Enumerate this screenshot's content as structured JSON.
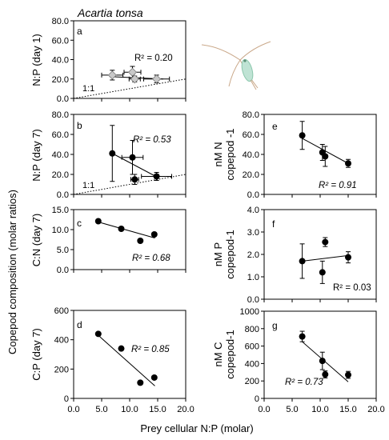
{
  "figure": {
    "title": "Acartia tonsa",
    "shared_ylabel": "Copepod composition (molar ratios)",
    "shared_xlabel": "Prey cellular N:P (molar)",
    "xtick_labels": [
      "0.0",
      "5.0",
      "10.0",
      "15.0",
      "20.0"
    ]
  },
  "chart_data": [
    {
      "id": "a",
      "type": "scatter",
      "panel_label": "a",
      "ylabel": "N:P (day 1)",
      "xlim": [
        0,
        20
      ],
      "ylim": [
        0,
        80
      ],
      "yticks": [
        0,
        20,
        40,
        60,
        80
      ],
      "ytick_labels": [
        "0.0",
        "20.0",
        "40.0",
        "60.0",
        "80.0"
      ],
      "r2": "R² = 0.20",
      "r2_italic": false,
      "one_to_one_label": "1:1",
      "marker": "diamond-gray",
      "points": [
        {
          "x": 6.9,
          "y": 24,
          "xerr": 1.9,
          "yerr": 5
        },
        {
          "x": 10.5,
          "y": 27,
          "xerr": 1.5,
          "yerr": 6
        },
        {
          "x": 10.9,
          "y": 20,
          "xerr": 1.0,
          "yerr": 3
        },
        {
          "x": 14.8,
          "y": 20,
          "xerr": 2.3,
          "yerr": 4
        }
      ],
      "fit": {
        "x": [
          6.4,
          16.0
        ],
        "y": [
          22.5,
          20.0
        ]
      }
    },
    {
      "id": "b",
      "type": "scatter",
      "panel_label": "b",
      "ylabel": "N:P (day 7)",
      "xlim": [
        0,
        20
      ],
      "ylim": [
        0,
        80
      ],
      "yticks": [
        0,
        20,
        40,
        60,
        80
      ],
      "ytick_labels": [
        "0.0",
        "20.0",
        "40.0",
        "60.0",
        "80.0"
      ],
      "r2": "R² = 0.53",
      "r2_italic": true,
      "one_to_one_label": "1:1",
      "marker": "circle",
      "points": [
        {
          "x": 6.9,
          "y": 41,
          "xerr": 0,
          "yerr": 28
        },
        {
          "x": 10.5,
          "y": 37,
          "xerr": 1.9,
          "yerr": 17
        },
        {
          "x": 10.9,
          "y": 15,
          "xerr": 0.7,
          "yerr": 5
        },
        {
          "x": 14.8,
          "y": 18,
          "xerr": 2.7,
          "yerr": 4
        }
      ],
      "fit": {
        "x": [
          6.9,
          15.0
        ],
        "y": [
          41,
          17
        ]
      }
    },
    {
      "id": "c",
      "type": "scatter",
      "panel_label": "c",
      "ylabel": "C:N (day 7)",
      "xlim": [
        0,
        20
      ],
      "ylim": [
        0,
        15
      ],
      "yticks": [
        0,
        5,
        10,
        15
      ],
      "ytick_labels": [
        "0.0",
        "5.0",
        "10.0",
        "15.0"
      ],
      "r2": "R² = 0.68",
      "r2_italic": true,
      "marker": "circle",
      "points": [
        {
          "x": 4.4,
          "y": 12.1
        },
        {
          "x": 8.5,
          "y": 10.2
        },
        {
          "x": 11.9,
          "y": 7.2
        },
        {
          "x": 14.4,
          "y": 8.8
        }
      ],
      "fit": {
        "x": [
          4.4,
          14.5
        ],
        "y": [
          11.9,
          7.9
        ]
      }
    },
    {
      "id": "d",
      "type": "scatter",
      "panel_label": "d",
      "ylabel": "C:P (day 7)",
      "xlim": [
        0,
        20
      ],
      "ylim": [
        0,
        600
      ],
      "yticks": [
        0,
        200,
        400,
        600
      ],
      "ytick_labels": [
        "0",
        "200",
        "400",
        "600"
      ],
      "r2": "R² = 0.85",
      "r2_italic": true,
      "marker": "circle",
      "points": [
        {
          "x": 4.4,
          "y": 440
        },
        {
          "x": 8.5,
          "y": 340
        },
        {
          "x": 11.9,
          "y": 107
        },
        {
          "x": 14.4,
          "y": 142
        }
      ],
      "fit": {
        "x": [
          4.4,
          14.5
        ],
        "y": [
          430,
          85
        ]
      }
    },
    {
      "id": "e",
      "type": "scatter",
      "panel_label": "e",
      "ylabel": "nM N copepod -1",
      "xlim": [
        0,
        20
      ],
      "ylim": [
        0,
        80
      ],
      "yticks": [
        0,
        20,
        40,
        60,
        80
      ],
      "ytick_labels": [
        "0.0",
        "20.0",
        "40.0",
        "60.0",
        "80.0"
      ],
      "r2": "R² = 0.91",
      "r2_italic": true,
      "marker": "circle",
      "points": [
        {
          "x": 6.8,
          "y": 59,
          "yerr": 14
        },
        {
          "x": 10.4,
          "y": 42,
          "yerr": 8
        },
        {
          "x": 10.9,
          "y": 38,
          "yerr": 10
        },
        {
          "x": 15.0,
          "y": 31,
          "yerr": 4
        }
      ],
      "fit": {
        "x": [
          6.8,
          15.0
        ],
        "y": [
          56,
          31
        ]
      }
    },
    {
      "id": "f",
      "type": "scatter",
      "panel_label": "f",
      "ylabel": "nM P copepod-1",
      "xlim": [
        0,
        20
      ],
      "ylim": [
        0,
        4
      ],
      "yticks": [
        0,
        1,
        2,
        3,
        4
      ],
      "ytick_labels": [
        "0.0",
        "1.0",
        "2.0",
        "3.0",
        "4.0"
      ],
      "r2": "R² = 0.03",
      "r2_italic": false,
      "marker": "circle",
      "points": [
        {
          "x": 6.8,
          "y": 1.7,
          "yerr": 0.77
        },
        {
          "x": 10.4,
          "y": 1.2,
          "yerr": 0.5
        },
        {
          "x": 10.9,
          "y": 2.55,
          "yerr": 0.2
        },
        {
          "x": 15.0,
          "y": 1.87,
          "yerr": 0.25
        }
      ],
      "fit": {
        "x": [
          6.8,
          15.0
        ],
        "y": [
          1.7,
          1.95
        ]
      }
    },
    {
      "id": "g",
      "type": "scatter",
      "panel_label": "g",
      "ylabel": "nM C copepod-1",
      "xlim": [
        0,
        20
      ],
      "ylim": [
        0,
        1000
      ],
      "yticks": [
        0,
        200,
        400,
        600,
        800,
        1000
      ],
      "ytick_labels": [
        "0",
        "200",
        "400",
        "600",
        "800",
        "1000"
      ],
      "r2": "R² = 0.73",
      "r2_italic": true,
      "marker": "circle",
      "points": [
        {
          "x": 6.8,
          "y": 710,
          "yerr": 60
        },
        {
          "x": 10.4,
          "y": 430,
          "yerr": 100
        },
        {
          "x": 10.9,
          "y": 275,
          "yerr": 40
        },
        {
          "x": 15.0,
          "y": 270,
          "yerr": 40
        }
      ],
      "fit": {
        "x": [
          6.8,
          15.0
        ],
        "y": [
          650,
          190
        ]
      }
    }
  ]
}
